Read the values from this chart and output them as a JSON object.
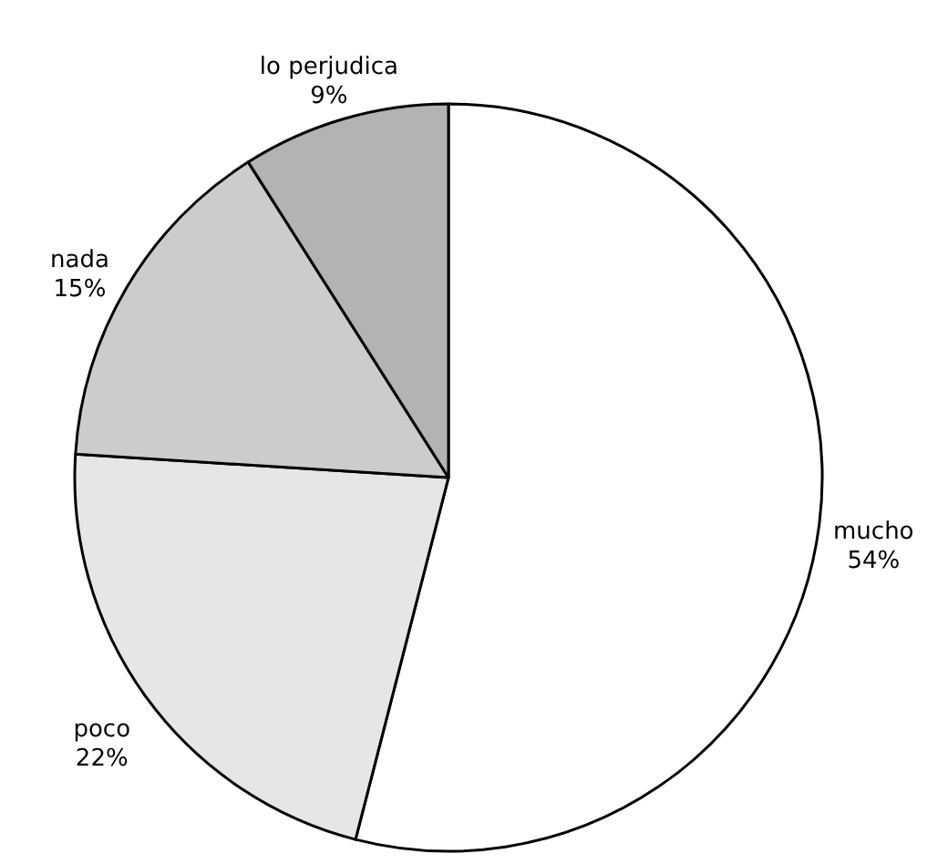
{
  "chart_data": {
    "type": "pie",
    "categories": [
      "mucho",
      "poco",
      "nada",
      "lo perjudica"
    ],
    "values": [
      54,
      22,
      15,
      9
    ],
    "value_labels": [
      "54%",
      "22%",
      "15%",
      "9%"
    ],
    "colors": [
      "#ffffff",
      "#e6e6e6",
      "#cccccc",
      "#b3b3b3"
    ]
  }
}
